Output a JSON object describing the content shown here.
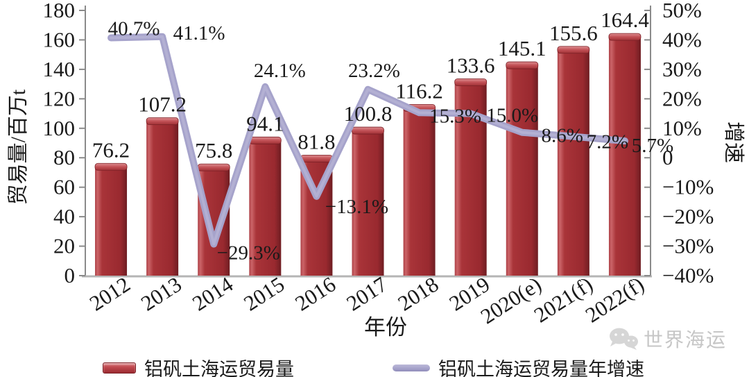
{
  "chart_data": {
    "type": "bar+line",
    "categories": [
      "2012",
      "2013",
      "2014",
      "2015",
      "2016",
      "2017",
      "2018",
      "2019",
      "2020(e)",
      "2021(f)",
      "2022(f)"
    ],
    "series": [
      {
        "name": "铝矾土海运贸易量",
        "type": "bar",
        "axis": "left",
        "values": [
          76.2,
          107.2,
          75.8,
          94.1,
          81.8,
          100.8,
          116.2,
          133.6,
          145.1,
          155.6,
          164.4
        ],
        "labels": [
          "76.2",
          "107.2",
          "75.8",
          "94.1",
          "81.8",
          "100.8",
          "116.2",
          "133.6",
          "145.1",
          "155.6",
          "164.4"
        ],
        "color": "#A93439"
      },
      {
        "name": "铝矾土海运贸易量年增速",
        "type": "line",
        "axis": "right",
        "values": [
          40.7,
          41.1,
          -29.3,
          24.1,
          -13.1,
          23.2,
          15.3,
          15.0,
          8.6,
          7.2,
          5.7
        ],
        "labels": [
          "40.7%",
          "41.1%",
          "−29.3%",
          "24.1%",
          "−13.1%",
          "23.2%",
          "15.3%",
          "15.0%",
          "8.6%",
          "7.2%",
          "5.7%"
        ],
        "color": "#A6A3CB"
      }
    ],
    "left_axis": {
      "title": "贸易量/百万t",
      "min": 0,
      "max": 180,
      "tick_step": 20,
      "ticks": [
        "180",
        "160",
        "140",
        "120",
        "100",
        "80",
        "60",
        "40",
        "20",
        "0"
      ]
    },
    "right_axis": {
      "title": "增速",
      "min": -40,
      "max": 50,
      "tick_step": 10,
      "ticks": [
        "50%",
        "40%",
        "30%",
        "20%",
        "10%",
        "0",
        "−10%",
        "−20%",
        "−30%",
        "−40%"
      ]
    },
    "x_axis": {
      "title": "年份"
    },
    "grid": false,
    "legend_position": "bottom"
  },
  "legend": {
    "items": [
      {
        "label": "铝矾土海运贸易量",
        "swatch": "bar",
        "color": "#A93439"
      },
      {
        "label": "铝矾土海运贸易量年增速",
        "swatch": "line",
        "color": "#A6A3CB"
      }
    ]
  },
  "watermark": {
    "icon": "wechat-logo-icon",
    "text": "世界海运",
    "color": "#C6C6C6"
  },
  "colors": {
    "bar_main": "#A93439",
    "bar_highlight": "#CB6468",
    "bar_shadow": "#6E1D22",
    "line": "#A6A3CB",
    "line_sheen": "#BCB9D8",
    "text": "#1A1A1A",
    "axis": "#8A8A8A",
    "baseline": "#B5B5B5"
  }
}
